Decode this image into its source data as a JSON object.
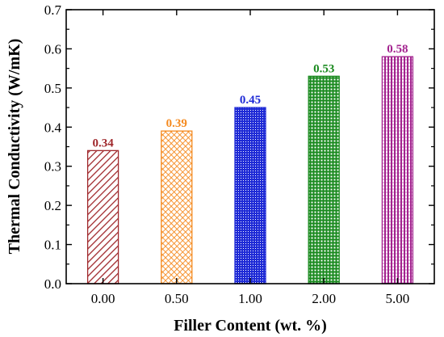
{
  "chart_data": {
    "type": "bar",
    "title": "",
    "xlabel": "Filler Content (wt. %)",
    "ylabel": "Thermal Conductivity (W/mK)",
    "categories": [
      "0.00",
      "0.50",
      "1.00",
      "2.00",
      "5.00"
    ],
    "values": [
      0.34,
      0.39,
      0.45,
      0.53,
      0.58
    ],
    "value_labels": [
      "0.34",
      "0.39",
      "0.45",
      "0.53",
      "0.58"
    ],
    "ylim": [
      0,
      0.7
    ],
    "yticks": [
      "0.0",
      "0.1",
      "0.2",
      "0.3",
      "0.4",
      "0.5",
      "0.6",
      "0.7"
    ],
    "grid": false,
    "bar_colors": [
      "#a0282c",
      "#f58a1f",
      "#1f2bd6",
      "#1a8a1f",
      "#a3238f"
    ],
    "bar_patterns": [
      "diagonal-hatch",
      "cross-hatch",
      "dense-dots",
      "grid",
      "vertical-lines"
    ]
  }
}
